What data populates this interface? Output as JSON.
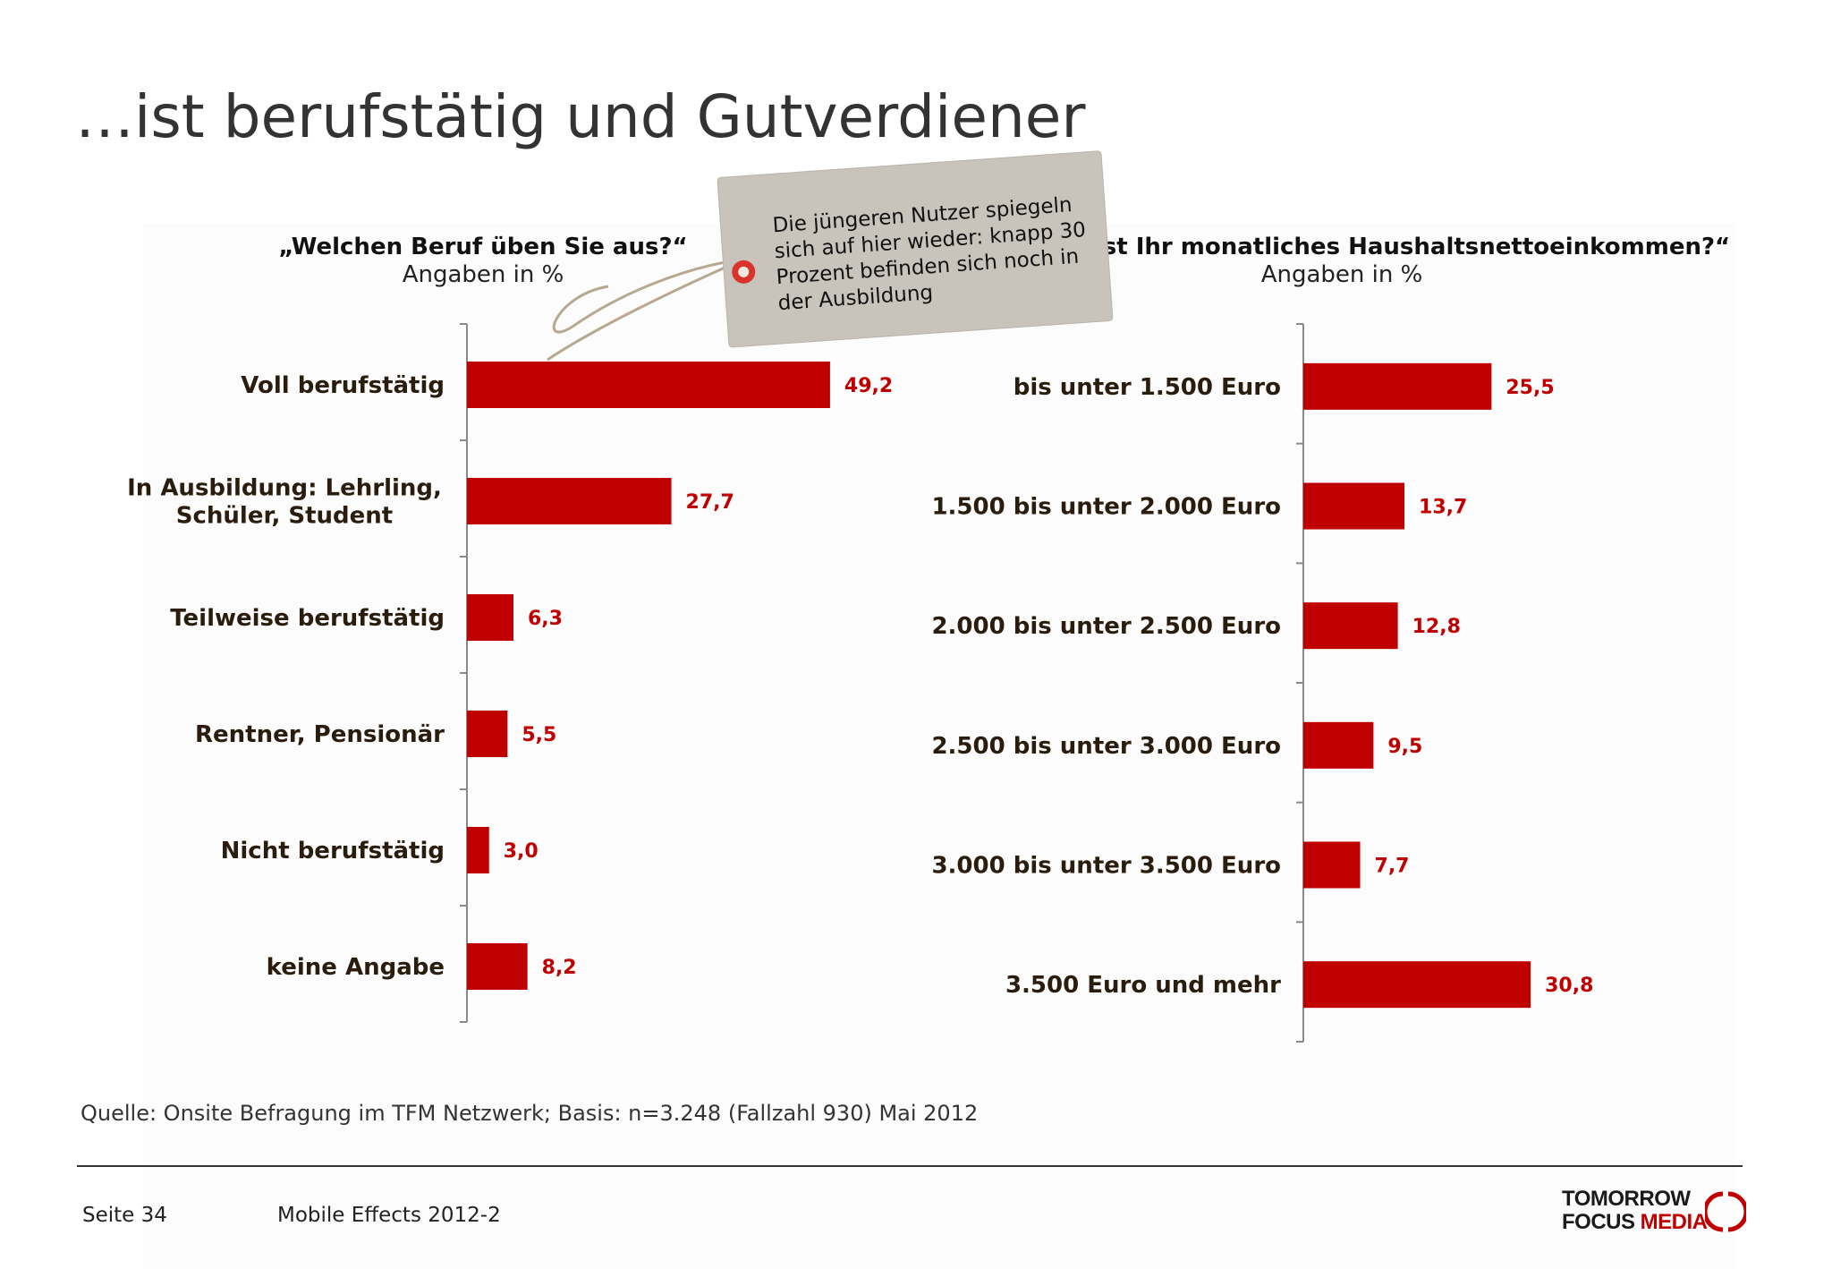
{
  "page_title": "…ist berufstätig und Gutverdiener",
  "annotation": {
    "lines": [
      "Die jüngeren Nutzer spiegeln",
      "sich auf hier wieder: knapp 30",
      "Prozent befinden sich noch in",
      "der Ausbildung"
    ]
  },
  "colors": {
    "bar": "#c00000",
    "value_label": "#c00000",
    "category_label": "#2b1d0e"
  },
  "chart_data": [
    {
      "type": "bar",
      "orientation": "horizontal",
      "title": "„Welchen Beruf üben Sie aus?“",
      "subtitle": "Angaben in %",
      "categories": [
        [
          "Voll berufstätig"
        ],
        [
          "In Ausbildung: Lehrling,",
          "Schüler, Student"
        ],
        [
          "Teilweise berufstätig"
        ],
        [
          "Rentner, Pensionär"
        ],
        [
          "Nicht berufstätig"
        ],
        [
          "keine Angabe"
        ]
      ],
      "values": [
        49.2,
        27.7,
        6.3,
        5.5,
        3.0,
        8.2
      ],
      "value_labels": [
        "49,2",
        "27,7",
        "6,3",
        "5,5",
        "3,0",
        "8,2"
      ],
      "xlim": [
        0,
        100
      ],
      "grid": false,
      "legend": "none"
    },
    {
      "type": "bar",
      "orientation": "horizontal",
      "title": "„Wie hoch ist Ihr monatliches Haushaltsnettoeinkommen?“",
      "subtitle": "Angaben in %",
      "categories": [
        [
          "bis unter 1.500 Euro"
        ],
        [
          "1.500 bis unter 2.000 Euro"
        ],
        [
          "2.000 bis unter 2.500 Euro"
        ],
        [
          "2.500 bis unter 3.000 Euro"
        ],
        [
          "3.000 bis unter 3.500 Euro"
        ],
        [
          "3.500 Euro und mehr"
        ]
      ],
      "values": [
        25.5,
        13.7,
        12.8,
        9.5,
        7.7,
        30.8
      ],
      "value_labels": [
        "25,5",
        "13,7",
        "12,8",
        "9,5",
        "7,7",
        "30,8"
      ],
      "xlim": [
        0,
        100
      ],
      "grid": false,
      "legend": "none"
    }
  ],
  "footer": {
    "source": "Quelle: Onsite Befragung im TFM Netzwerk; Basis: n=3.248 (Fallzahl 930) Mai 2012",
    "page": "Seite 34",
    "document": "Mobile Effects 2012-2",
    "logo_line1": "TOMORROW",
    "logo_line2a": "FOCUS ",
    "logo_line2b": "MEDIA"
  }
}
